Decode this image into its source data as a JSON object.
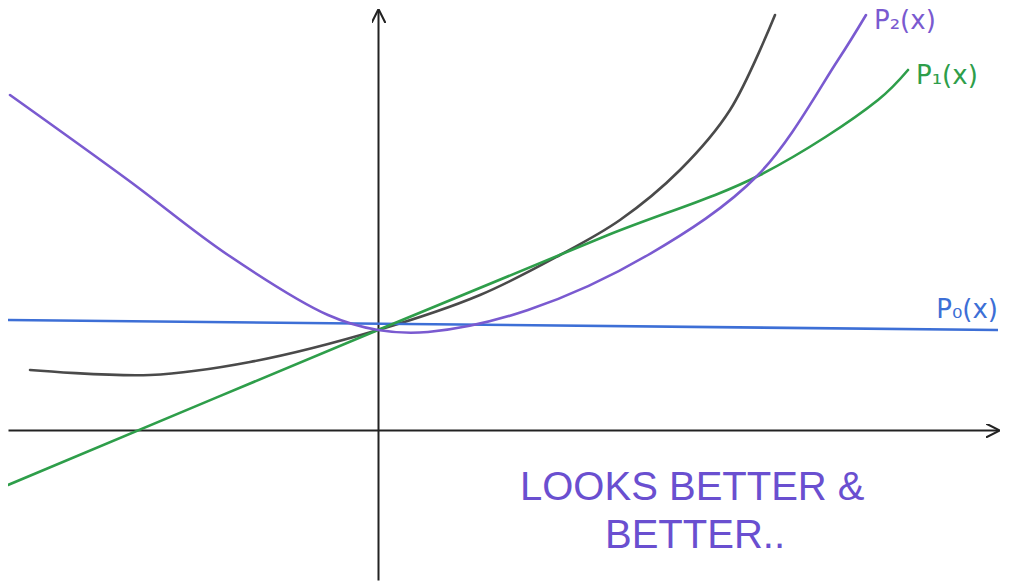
{
  "chart_data": {
    "type": "line",
    "xlim": [
      -3.7,
      6.2
    ],
    "ylim": [
      -1.5,
      4.2
    ],
    "xticks": [],
    "yticks": [],
    "tick_labels": false,
    "grid": false,
    "series": [
      {
        "color": "#4a4a4a",
        "x": [
          -3.48,
          -2.28,
          -1.28,
          0,
          1.02,
          1.82,
          2.42,
          3.02,
          3.52,
          3.97
        ],
        "values": [
          0.6,
          0.55,
          0.68,
          1.0,
          1.35,
          1.75,
          2.1,
          2.6,
          3.2,
          4.15
        ]
      },
      {
        "name": "P₀(x)",
        "color": "#3d6fd6",
        "x": [
          -3.7,
          6.2
        ],
        "values": [
          1.1,
          1.0
        ]
      },
      {
        "name": "P₁(x)",
        "color": "#2e9e4a",
        "x": [
          -3.7,
          0,
          2.3,
          3.82,
          5.0,
          5.3
        ],
        "values": [
          -0.55,
          1.0,
          1.95,
          2.55,
          3.3,
          3.6
        ]
      },
      {
        "name": "P₂(x)",
        "color": "#7a5ad0",
        "x": [
          -3.68,
          -2.5,
          -1.5,
          -0.5,
          0,
          0.5,
          1.5,
          2.7,
          3.8,
          4.6,
          4.88
        ],
        "values": [
          3.35,
          2.5,
          1.75,
          1.15,
          1.0,
          0.98,
          1.2,
          1.75,
          2.55,
          3.7,
          4.15
        ]
      }
    ],
    "annotations": [
      "LOOKS BETTER & BETTER.."
    ]
  }
}
